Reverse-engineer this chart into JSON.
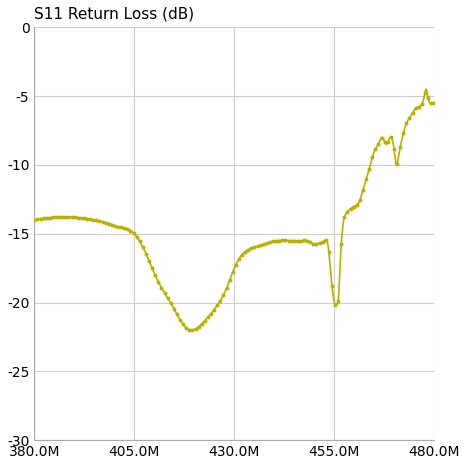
{
  "title": "S11 Return Loss (dB)",
  "xlabel": "",
  "ylabel": "",
  "xlim": [
    380000000.0,
    480000000.0
  ],
  "ylim": [
    -30,
    0
  ],
  "xticks": [
    380000000.0,
    405000000.0,
    430000000.0,
    455000000.0,
    480000000.0
  ],
  "yticks": [
    0,
    -5,
    -10,
    -15,
    -20,
    -25,
    -30
  ],
  "xtick_labels": [
    "380.0M",
    "405.0M",
    "430.0M",
    "455.0M",
    "480.0M"
  ],
  "ytick_labels": [
    "0",
    "-5",
    "-10",
    "-15",
    "-20",
    "-25",
    "-30"
  ],
  "line_color": "#b8b000",
  "bg_color": "#ffffff",
  "grid_color": "#cccccc",
  "title_fontsize": 11,
  "tick_fontsize": 10
}
